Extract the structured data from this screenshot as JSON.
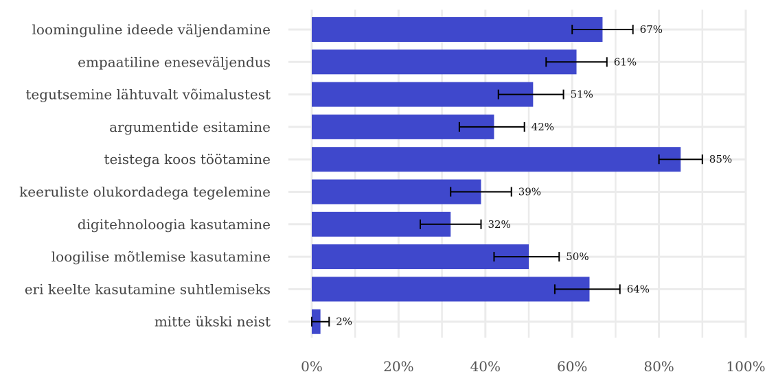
{
  "chart_data": {
    "type": "bar",
    "orientation": "horizontal",
    "title": "",
    "xlabel": "",
    "ylabel": "",
    "categories": [
      "loominguline ideede väljendamine",
      "empaatiline eneseväljendus",
      "tegutsemine lähtuvalt võimalustest",
      "argumentide esitamine",
      "teistega koos töötamine",
      "keeruliste olukordadega tegelemine",
      "digitehnoloogia kasutamine",
      "loogilise mõtlemise kasutamine",
      "eri keelte kasutamine suhtlemiseks",
      "mitte ükski neist"
    ],
    "values": [
      67,
      61,
      51,
      42,
      85,
      39,
      32,
      50,
      64,
      2
    ],
    "value_labels": [
      "67%",
      "61%",
      "51%",
      "42%",
      "85%",
      "39%",
      "32%",
      "50%",
      "64%",
      "2%"
    ],
    "error_low": [
      60,
      54,
      43,
      34,
      80,
      32,
      25,
      42,
      56,
      0
    ],
    "error_high": [
      74,
      68,
      58,
      49,
      90,
      46,
      39,
      57,
      71,
      4
    ],
    "xlim": [
      0,
      100
    ],
    "xticks": [
      0,
      20,
      40,
      60,
      80,
      100
    ],
    "xtick_labels": [
      "0%",
      "20%",
      "40%",
      "60%",
      "80%",
      "100%"
    ],
    "grid": true,
    "bar_color": "#3f48cc",
    "grid_color": "#ebebeb",
    "error_color": "#000000"
  }
}
